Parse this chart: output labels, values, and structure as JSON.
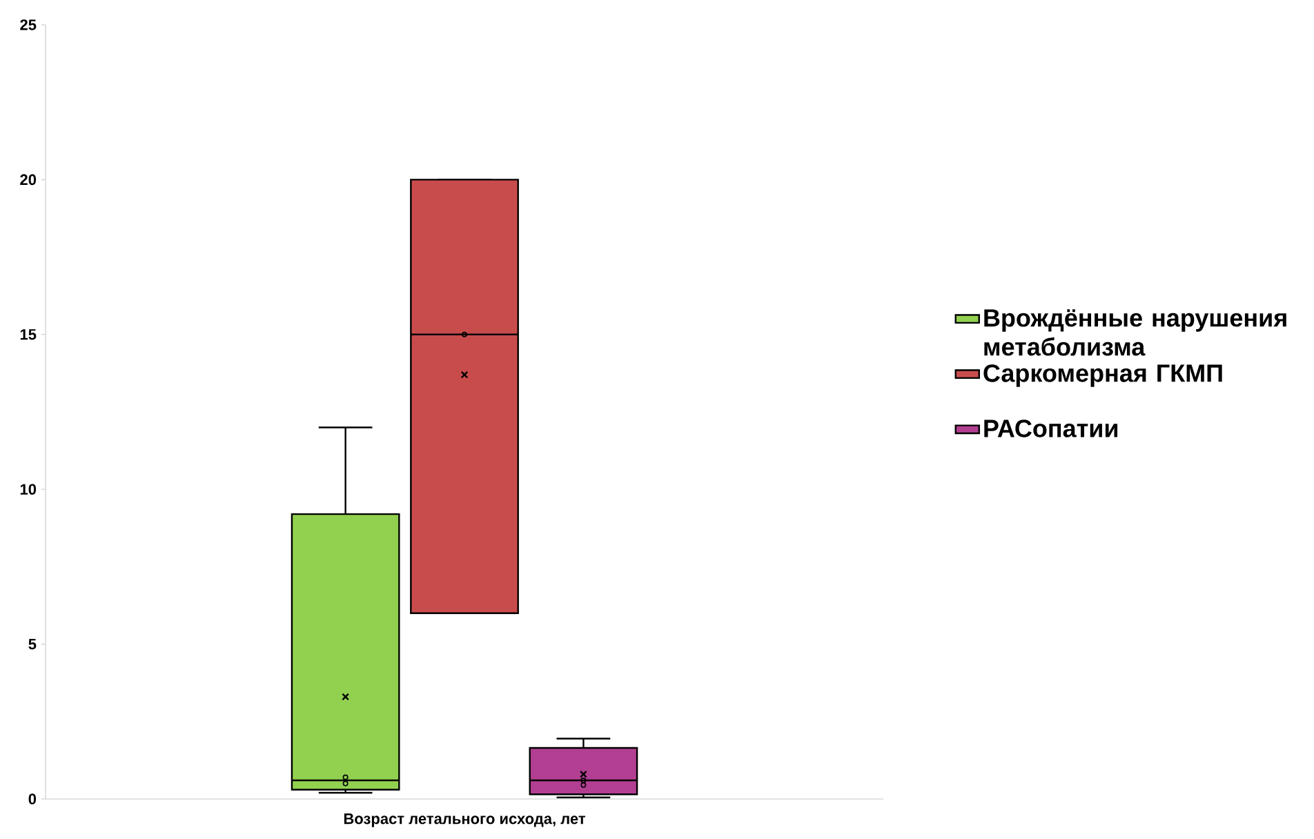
{
  "chart_data": {
    "type": "box",
    "categories": [
      "Возраст летального исхода, лет"
    ],
    "ylim": [
      0,
      25
    ],
    "yticks": [
      0,
      5,
      10,
      15,
      20,
      25
    ],
    "legend": "right",
    "series": [
      {
        "name": "Врождённые нарушения метаболизма",
        "color": "#92d050",
        "boxes": [
          {
            "low": 0.2,
            "q1": 0.3,
            "median": 0.6,
            "q3": 9.2,
            "high": 12,
            "mean": 3.3,
            "outliers": [
              0.5,
              0.7
            ]
          }
        ]
      },
      {
        "name": "Саркомерная ГКМП",
        "color": "#c94c4c",
        "boxes": [
          {
            "low": 6,
            "q1": 6,
            "median": 15,
            "q3": 20,
            "high": 20,
            "mean": 13.7,
            "outliers": [
              15
            ]
          }
        ]
      },
      {
        "name": "РАСопатии",
        "color": "#b23f92",
        "boxes": [
          {
            "low": 0.05,
            "q1": 0.15,
            "median": 0.6,
            "q3": 1.65,
            "high": 1.95,
            "mean": 0.8,
            "outliers": [
              0.45,
              0.6
            ]
          }
        ]
      }
    ]
  }
}
